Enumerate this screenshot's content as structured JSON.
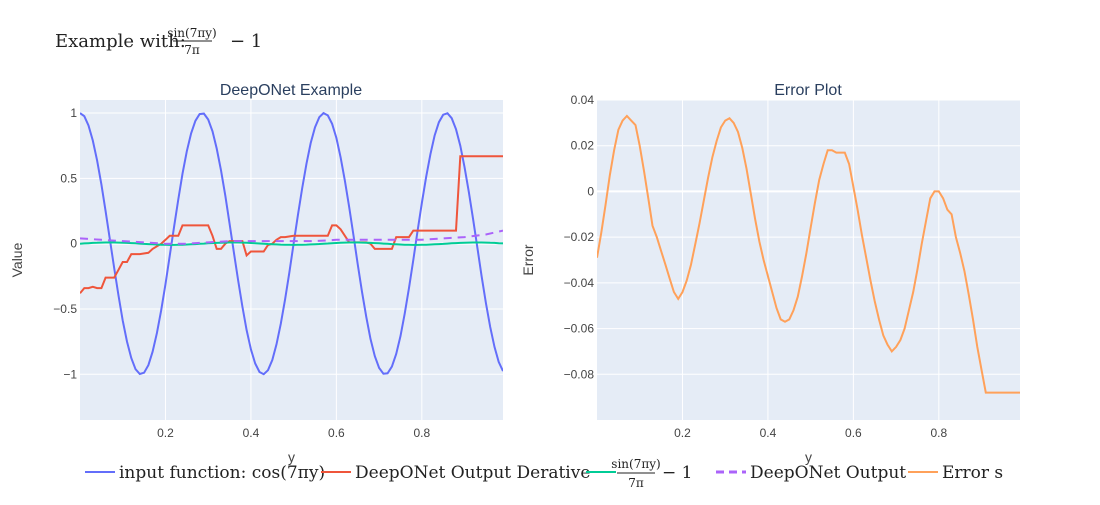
{
  "figure": {
    "title_prefix": "Example with:",
    "title_formula": {
      "numerator": "sin(7πy)",
      "denominator": "7π",
      "suffix": "− 1"
    }
  },
  "colors": {
    "plot_bg": "#e5ecf6",
    "grid": "#ffffff",
    "input": "#636efa",
    "derivative": "#ef553b",
    "sin_func": "#00cc96",
    "deeponet": "#ab63fa",
    "error": "#ffa15a"
  },
  "legend": [
    {
      "key": "input",
      "label": "input function: cos(7πy)",
      "dash": false
    },
    {
      "key": "derivative",
      "label": "DeepONet Output Derative",
      "dash": false
    },
    {
      "key": "sin_func",
      "label_num": "sin(7πy)",
      "label_den": "7π",
      "label_suffix": "− 1",
      "dash": false
    },
    {
      "key": "deeponet",
      "label": "DeepONet Output",
      "dash": true
    },
    {
      "key": "error",
      "label": "Error s",
      "dash": false
    }
  ],
  "chart_data": [
    {
      "type": "line",
      "title": "DeepONet Example",
      "xlabel": "y",
      "ylabel": "Value",
      "xlim": [
        0,
        0.99
      ],
      "ylim": [
        -1.35,
        1.1
      ],
      "xticks": [
        0.2,
        0.4,
        0.6,
        0.8
      ],
      "xtick_labels": [
        "0.2",
        "0.4",
        "0.6",
        "0.8"
      ],
      "yticks": [
        1,
        0.5,
        0,
        -0.5,
        -1
      ],
      "ytick_labels": [
        "1",
        "0.5",
        "0",
        "−0.5",
        "−1"
      ],
      "series": [
        {
          "name": "input function: cos(7πy)",
          "key": "input",
          "dash": false,
          "formula": "cos",
          "samples": 100
        },
        {
          "name": "DeepONet Output Derative",
          "key": "derivative",
          "dash": false,
          "x": [
            0,
            0.01,
            0.02,
            0.03,
            0.04,
            0.05,
            0.06,
            0.07,
            0.08,
            0.09,
            0.1,
            0.11,
            0.12,
            0.13,
            0.14,
            0.16,
            0.17,
            0.19,
            0.2,
            0.21,
            0.22,
            0.23,
            0.24,
            0.25,
            0.26,
            0.3,
            0.31,
            0.32,
            0.33,
            0.34,
            0.35,
            0.36,
            0.37,
            0.38,
            0.39,
            0.4,
            0.41,
            0.43,
            0.44,
            0.45,
            0.46,
            0.47,
            0.48,
            0.5,
            0.52,
            0.53,
            0.54,
            0.55,
            0.56,
            0.58,
            0.59,
            0.6,
            0.61,
            0.62,
            0.63,
            0.64,
            0.67,
            0.68,
            0.69,
            0.7,
            0.72,
            0.73,
            0.74,
            0.76,
            0.77,
            0.78,
            0.79,
            0.8,
            0.81,
            0.82,
            0.88,
            0.89,
            0.99
          ],
          "values": [
            -0.38,
            -0.34,
            -0.34,
            -0.33,
            -0.34,
            -0.34,
            -0.26,
            -0.26,
            -0.26,
            -0.2,
            -0.14,
            -0.14,
            -0.08,
            -0.08,
            -0.08,
            -0.07,
            -0.04,
            0.0,
            0.03,
            0.06,
            0.06,
            0.06,
            0.14,
            0.14,
            0.14,
            0.14,
            0.06,
            -0.04,
            -0.04,
            0.0,
            0.02,
            0.02,
            0.02,
            0.02,
            -0.09,
            -0.06,
            -0.06,
            -0.06,
            -0.01,
            0.0,
            0.03,
            0.05,
            0.05,
            0.06,
            0.06,
            0.06,
            0.06,
            0.06,
            0.06,
            0.06,
            0.14,
            0.14,
            0.11,
            0.06,
            0.01,
            0.01,
            0.01,
            0.0,
            -0.04,
            -0.04,
            -0.04,
            -0.04,
            0.05,
            0.05,
            0.05,
            0.1,
            0.1,
            0.1,
            0.1,
            0.1,
            0.1,
            0.67,
            0.67
          ]
        },
        {
          "name": "sin(7πy)/7π − 1",
          "key": "sin_func",
          "dash": false,
          "formula": "sin_scaled",
          "samples": 100
        },
        {
          "name": "DeepONet Output",
          "key": "deeponet",
          "dash": true,
          "x": [
            0,
            0.05,
            0.1,
            0.15,
            0.2,
            0.25,
            0.3,
            0.35,
            0.4,
            0.45,
            0.5,
            0.55,
            0.6,
            0.65,
            0.7,
            0.75,
            0.8,
            0.85,
            0.9,
            0.95,
            0.99
          ],
          "values": [
            0.04,
            0.03,
            0.02,
            0.01,
            0.0,
            0.0,
            0.01,
            0.02,
            0.02,
            0.02,
            0.02,
            0.02,
            0.03,
            0.03,
            0.03,
            0.03,
            0.03,
            0.04,
            0.05,
            0.07,
            0.1
          ]
        }
      ]
    },
    {
      "type": "line",
      "title": "Error Plot",
      "xlabel": "y",
      "ylabel": "Error",
      "xlim": [
        0,
        0.99
      ],
      "ylim": [
        -0.1,
        0.04
      ],
      "xticks": [
        0.2,
        0.4,
        0.6,
        0.8
      ],
      "xtick_labels": [
        "0.2",
        "0.4",
        "0.6",
        "0.8"
      ],
      "yticks": [
        0.04,
        0.02,
        0,
        -0.02,
        -0.04,
        -0.06,
        -0.08
      ],
      "ytick_labels": [
        "0.04",
        "0.02",
        "0",
        "−0.02",
        "−0.04",
        "−0.06",
        "−0.08"
      ],
      "series": [
        {
          "name": "Error s",
          "key": "error",
          "dash": false,
          "x": [
            0,
            0.01,
            0.02,
            0.03,
            0.04,
            0.05,
            0.06,
            0.07,
            0.08,
            0.09,
            0.1,
            0.11,
            0.12,
            0.13,
            0.14,
            0.15,
            0.16,
            0.17,
            0.18,
            0.19,
            0.2,
            0.21,
            0.22,
            0.23,
            0.24,
            0.25,
            0.26,
            0.27,
            0.28,
            0.29,
            0.3,
            0.31,
            0.32,
            0.33,
            0.34,
            0.35,
            0.36,
            0.37,
            0.38,
            0.39,
            0.4,
            0.41,
            0.42,
            0.43,
            0.44,
            0.45,
            0.46,
            0.47,
            0.48,
            0.49,
            0.5,
            0.51,
            0.52,
            0.53,
            0.54,
            0.55,
            0.56,
            0.57,
            0.58,
            0.59,
            0.6,
            0.61,
            0.62,
            0.63,
            0.64,
            0.65,
            0.66,
            0.67,
            0.68,
            0.69,
            0.7,
            0.71,
            0.72,
            0.73,
            0.74,
            0.75,
            0.76,
            0.77,
            0.78,
            0.79,
            0.8,
            0.81,
            0.82,
            0.83,
            0.84,
            0.85,
            0.86,
            0.87,
            0.88,
            0.89,
            0.9,
            0.91,
            0.92,
            0.93,
            0.94,
            0.95,
            0.96,
            0.97,
            0.98,
            0.99
          ],
          "values": [
            -0.029,
            -0.018,
            -0.006,
            0.007,
            0.018,
            0.027,
            0.031,
            0.033,
            0.031,
            0.029,
            0.02,
            0.009,
            -0.003,
            -0.015,
            -0.02,
            -0.026,
            -0.032,
            -0.038,
            -0.044,
            -0.047,
            -0.044,
            -0.039,
            -0.032,
            -0.023,
            -0.014,
            -0.004,
            0.006,
            0.015,
            0.022,
            0.028,
            0.031,
            0.032,
            0.03,
            0.026,
            0.019,
            0.01,
            -0.001,
            -0.012,
            -0.022,
            -0.03,
            -0.037,
            -0.044,
            -0.051,
            -0.056,
            -0.057,
            -0.056,
            -0.052,
            -0.046,
            -0.037,
            -0.027,
            -0.016,
            -0.005,
            0.005,
            0.012,
            0.018,
            0.018,
            0.017,
            0.017,
            0.017,
            0.012,
            0.002,
            -0.008,
            -0.019,
            -0.029,
            -0.039,
            -0.048,
            -0.056,
            -0.063,
            -0.067,
            -0.07,
            -0.068,
            -0.065,
            -0.06,
            -0.052,
            -0.044,
            -0.034,
            -0.023,
            -0.013,
            -0.003,
            0.0,
            0.0,
            -0.003,
            -0.008,
            -0.01,
            -0.02,
            -0.027,
            -0.035,
            -0.045,
            -0.056,
            -0.068,
            -0.078,
            -0.088,
            -0.088,
            -0.088,
            -0.088,
            -0.088,
            -0.088,
            -0.088,
            -0.088,
            -0.088
          ]
        }
      ]
    }
  ]
}
